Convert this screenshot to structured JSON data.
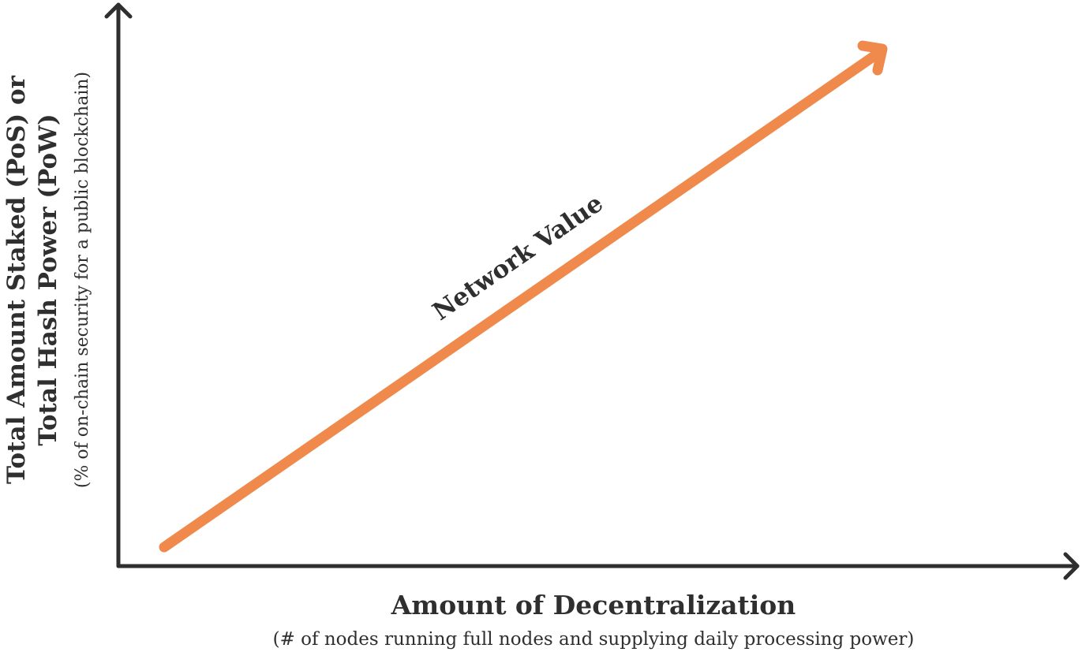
{
  "colors": {
    "axis": "#2f2f2f",
    "trend": "#ef8a4c",
    "text": "#2f2f2f",
    "background": "#ffffff"
  },
  "y_axis": {
    "title_line1": "Total Amount Staked (PoS) or",
    "title_line2": "Total Hash Power (PoW)",
    "subtitle": "(% of on-chain security for a public blockchain)"
  },
  "x_axis": {
    "title": "Amount of Decentralization",
    "subtitle": "(# of nodes running full nodes and supplying daily processing power)"
  },
  "trend": {
    "label": "Network Value",
    "direction": "up-right",
    "icon": "arrow-head-icon"
  }
}
